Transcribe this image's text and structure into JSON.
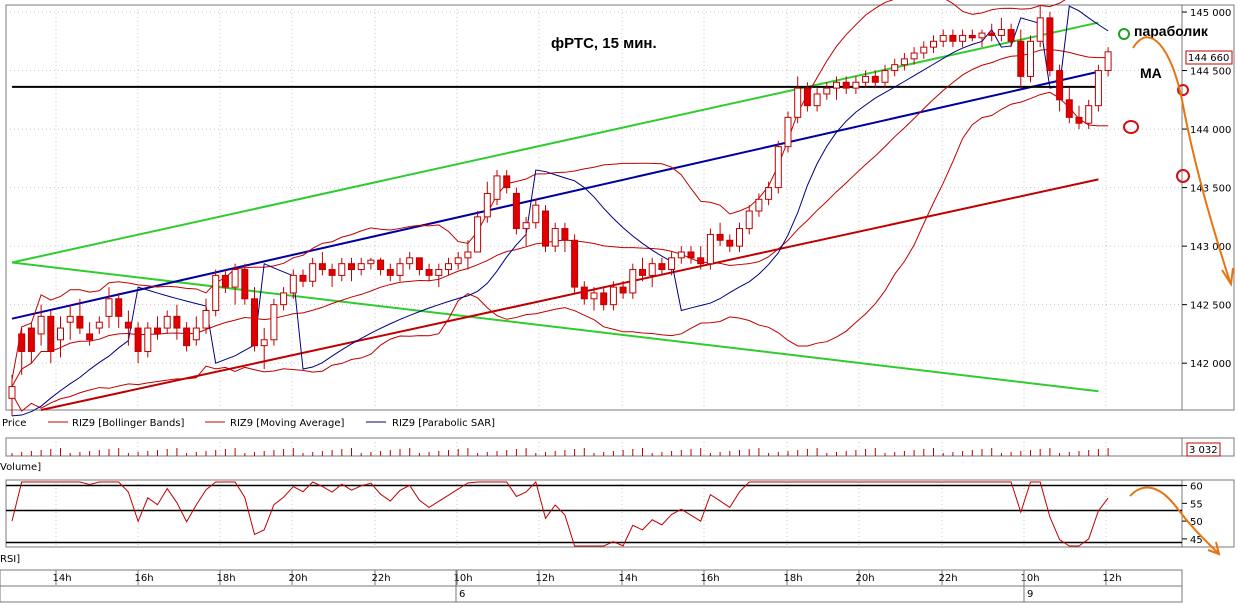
{
  "chart_data": {
    "type": "candlestick",
    "title": "фРТС,  15 мин.",
    "annotations": {
      "parabolic": "параболик",
      "ma": "МА"
    },
    "price_axis": {
      "range": [
        141600,
        145060
      ],
      "ticks": [
        "145 000",
        "144 500",
        "144 000",
        "143 500",
        "143 000",
        "142 500",
        "142 000"
      ],
      "tick_values": [
        145000,
        144500,
        144000,
        143500,
        143000,
        142500,
        142000
      ],
      "last_price": "144 660"
    },
    "time_axis": {
      "labels": [
        "14h",
        "16h",
        "18h",
        "20h",
        "22h",
        "10h",
        "12h",
        "14h",
        "16h",
        "18h",
        "20h",
        "22h",
        "10h",
        "12h"
      ],
      "day_labels": [
        "6",
        "9"
      ]
    },
    "legend": [
      {
        "label": "Price",
        "color": "#c00000"
      },
      {
        "label": "RIZ9 [Bollinger Bands]",
        "color": "#c00000"
      },
      {
        "label": "RIZ9 [Moving Average]",
        "color": "#c00000"
      },
      {
        "label": "RIZ9 [Parabolic SAR]",
        "color": "#000080"
      }
    ],
    "volume": {
      "label": "Volume]",
      "last_value": "3 032"
    },
    "rsi": {
      "label": "RSI]",
      "ticks": [
        "60",
        "55",
        "50",
        "45"
      ],
      "tick_values": [
        60,
        55,
        50,
        45
      ],
      "range": [
        43,
        61
      ],
      "levels": [
        60,
        53,
        44
      ]
    },
    "candles": [
      [
        141700,
        141900,
        141550,
        141800
      ],
      [
        142250,
        142300,
        141900,
        142100
      ],
      [
        142300,
        142350,
        142000,
        142100
      ],
      [
        142250,
        142500,
        142150,
        142400
      ],
      [
        142400,
        142450,
        142000,
        142100
      ],
      [
        142200,
        142400,
        142050,
        142300
      ],
      [
        142350,
        142500,
        142200,
        142400
      ],
      [
        142400,
        142550,
        142250,
        142300
      ],
      [
        142250,
        142350,
        142150,
        142200
      ],
      [
        142300,
        142400,
        142250,
        142350
      ],
      [
        142400,
        142650,
        142300,
        142550
      ],
      [
        142550,
        142600,
        142300,
        142400
      ],
      [
        142350,
        142450,
        142150,
        142300
      ],
      [
        142300,
        142350,
        142000,
        142100
      ],
      [
        142100,
        142350,
        142050,
        142300
      ],
      [
        142300,
        142400,
        142200,
        142250
      ],
      [
        142300,
        142450,
        142250,
        142400
      ],
      [
        142400,
        142500,
        142200,
        142300
      ],
      [
        142300,
        142350,
        142100,
        142150
      ],
      [
        142200,
        142400,
        142150,
        142300
      ],
      [
        142300,
        142550,
        142250,
        142450
      ],
      [
        142450,
        142800,
        142400,
        142750
      ],
      [
        142750,
        142800,
        142600,
        142650
      ],
      [
        142650,
        142850,
        142500,
        142800
      ],
      [
        142800,
        142850,
        142500,
        142550
      ],
      [
        142550,
        142650,
        142100,
        142150
      ],
      [
        142150,
        142300,
        141950,
        142200
      ],
      [
        142200,
        142550,
        142150,
        142500
      ],
      [
        142500,
        142650,
        142450,
        142600
      ],
      [
        142600,
        142800,
        142550,
        142750
      ],
      [
        142750,
        142800,
        142650,
        142700
      ],
      [
        142700,
        142900,
        142650,
        142850
      ],
      [
        142850,
        142950,
        142750,
        142800
      ],
      [
        142800,
        142850,
        142650,
        142750
      ],
      [
        142750,
        142900,
        142700,
        142850
      ],
      [
        142850,
        142900,
        142700,
        142800
      ],
      [
        142800,
        142900,
        142750,
        142850
      ],
      [
        142850,
        142900,
        142800,
        142880
      ],
      [
        142880,
        142900,
        142750,
        142800
      ],
      [
        142800,
        142850,
        142700,
        142750
      ],
      [
        142750,
        142900,
        142700,
        142850
      ],
      [
        142850,
        142950,
        142800,
        142900
      ],
      [
        142900,
        142900,
        142750,
        142800
      ],
      [
        142800,
        142850,
        142700,
        142750
      ],
      [
        142750,
        142850,
        142650,
        142800
      ],
      [
        142800,
        142900,
        142750,
        142850
      ],
      [
        142850,
        142950,
        142800,
        142900
      ],
      [
        142900,
        143050,
        142800,
        142950
      ],
      [
        142950,
        143300,
        142950,
        143250
      ],
      [
        143250,
        143550,
        143200,
        143450
      ],
      [
        143400,
        143650,
        143350,
        143600
      ],
      [
        143600,
        143650,
        143450,
        143500
      ],
      [
        143450,
        143500,
        143100,
        143150
      ],
      [
        143150,
        143250,
        143000,
        143200
      ],
      [
        143200,
        143400,
        143150,
        143350
      ],
      [
        143300,
        143350,
        142950,
        143000
      ],
      [
        143000,
        143200,
        142950,
        143150
      ],
      [
        143150,
        143200,
        142950,
        143050
      ],
      [
        143050,
        143100,
        142600,
        142650
      ],
      [
        142650,
        142700,
        142500,
        142550
      ],
      [
        142550,
        142650,
        142450,
        142600
      ],
      [
        142600,
        142650,
        142450,
        142500
      ],
      [
        142500,
        142700,
        142450,
        142650
      ],
      [
        142650,
        142700,
        142550,
        142600
      ],
      [
        142600,
        142850,
        142550,
        142800
      ],
      [
        142800,
        142900,
        142700,
        142750
      ],
      [
        142750,
        142900,
        142650,
        142850
      ],
      [
        142850,
        142900,
        142750,
        142800
      ],
      [
        142800,
        142950,
        142750,
        142900
      ],
      [
        142900,
        143000,
        142850,
        142950
      ],
      [
        142950,
        143000,
        142850,
        142900
      ],
      [
        142900,
        143000,
        142800,
        142850
      ],
      [
        142850,
        143150,
        142800,
        143100
      ],
      [
        143100,
        143200,
        143000,
        143050
      ],
      [
        143050,
        143100,
        142950,
        143000
      ],
      [
        143000,
        143200,
        142950,
        143150
      ],
      [
        143150,
        143350,
        143100,
        143300
      ],
      [
        143300,
        143450,
        143250,
        143400
      ],
      [
        143400,
        143550,
        143350,
        143500
      ],
      [
        143500,
        143900,
        143450,
        143850
      ],
      [
        143850,
        144150,
        143800,
        144100
      ],
      [
        144100,
        144450,
        144050,
        144350
      ],
      [
        144350,
        144400,
        144150,
        144200
      ],
      [
        144200,
        144350,
        144150,
        144300
      ],
      [
        144300,
        144400,
        144250,
        144350
      ],
      [
        144350,
        144450,
        144250,
        144400
      ],
      [
        144400,
        144450,
        144300,
        144350
      ],
      [
        144350,
        144450,
        144300,
        144400
      ],
      [
        144400,
        144500,
        144350,
        144450
      ],
      [
        144450,
        144500,
        144350,
        144400
      ],
      [
        144400,
        144550,
        144350,
        144500
      ],
      [
        144500,
        144600,
        144450,
        144550
      ],
      [
        144550,
        144650,
        144500,
        144600
      ],
      [
        144600,
        144700,
        144550,
        144650
      ],
      [
        144650,
        144750,
        144600,
        144700
      ],
      [
        144700,
        144800,
        144650,
        144750
      ],
      [
        144750,
        144850,
        144700,
        144800
      ],
      [
        144800,
        144850,
        144700,
        144750
      ],
      [
        144750,
        144850,
        144700,
        144800
      ],
      [
        144800,
        144850,
        144750,
        144780
      ],
      [
        144780,
        144850,
        144700,
        144820
      ],
      [
        144820,
        144900,
        144750,
        144800
      ],
      [
        144800,
        144950,
        144750,
        144850
      ],
      [
        144850,
        144900,
        144700,
        144750
      ],
      [
        144750,
        144850,
        144350,
        144450
      ],
      [
        144450,
        144800,
        144400,
        144750
      ],
      [
        144750,
        145050,
        144700,
        144950
      ],
      [
        144950,
        145000,
        144450,
        144500
      ],
      [
        144500,
        144550,
        144150,
        144250
      ],
      [
        144250,
        144350,
        144050,
        144100
      ],
      [
        144100,
        144200,
        144000,
        144050
      ],
      [
        144050,
        144250,
        144000,
        144200
      ],
      [
        144200,
        144550,
        144150,
        144500
      ],
      [
        144500,
        144700,
        144450,
        144660
      ]
    ],
    "trendlines": [
      {
        "name": "green-upper",
        "color": "#2ecc2e",
        "points": [
          [
            0,
            142860
          ],
          [
            112,
            144910
          ]
        ]
      },
      {
        "name": "green-lower",
        "color": "#2ecc2e",
        "points": [
          [
            0,
            142860
          ],
          [
            112,
            141760
          ]
        ]
      },
      {
        "name": "blue",
        "color": "#0000a0",
        "points": [
          [
            0,
            142380
          ],
          [
            112,
            144490
          ]
        ]
      },
      {
        "name": "red",
        "color": "#c00000",
        "points": [
          [
            3,
            141600
          ],
          [
            112,
            143570
          ]
        ]
      },
      {
        "name": "black-horizontal",
        "color": "#000000",
        "points": [
          [
            0,
            144360
          ],
          [
            112,
            144360
          ]
        ]
      }
    ]
  }
}
